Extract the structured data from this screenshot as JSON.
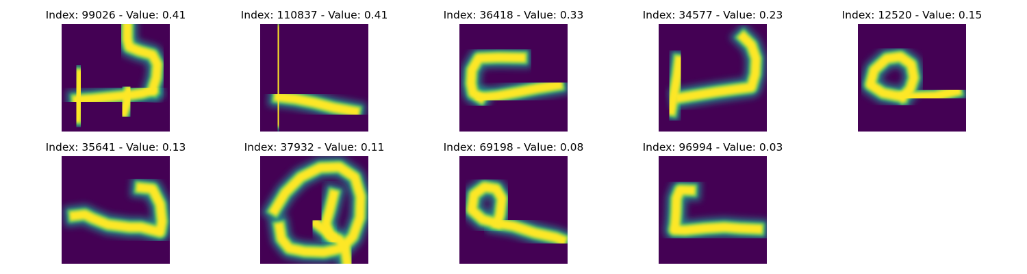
{
  "colors": {
    "background": "#440154",
    "colormap": [
      "#440154",
      "#3b528b",
      "#21908d",
      "#5dc963",
      "#fde725"
    ]
  },
  "panels": [
    {
      "title": "Index: 99026 - Value: 0.41",
      "strokes": [
        [
          [
            4.0,
            24.5
          ],
          [
            4.5,
            18.5
          ],
          [
            4.8,
            13.0
          ]
        ],
        [
          [
            4.0,
            19.8
          ],
          [
            8.0,
            19.5
          ],
          [
            13.0,
            19.0
          ],
          [
            18.0,
            18.5
          ],
          [
            21.0,
            18.0
          ],
          [
            23.5,
            17.2
          ]
        ],
        [
          [
            23.5,
            17.2
          ],
          [
            24.5,
            14.0
          ],
          [
            24.8,
            10.5
          ],
          [
            23.5,
            8.0
          ],
          [
            20.0,
            7.0
          ],
          [
            17.5,
            6.0
          ],
          [
            17.0,
            4.0
          ],
          [
            17.0,
            0.7
          ]
        ],
        [
          [
            16.0,
            23.0
          ],
          [
            17.0,
            20.0
          ],
          [
            17.5,
            17.5
          ]
        ]
      ]
    },
    {
      "title": "Index: 110837 - Value: 0.41",
      "strokes": [
        [
          [
            4.7,
            1.5
          ],
          [
            4.8,
            7.0
          ],
          [
            4.8,
            14.0
          ],
          [
            4.7,
            20.0
          ],
          [
            4.6,
            25.5
          ]
        ],
        [
          [
            4.8,
            19.0
          ],
          [
            9.0,
            19.5
          ],
          [
            14.0,
            20.5
          ],
          [
            19.0,
            21.8
          ],
          [
            24.5,
            22.8
          ]
        ]
      ]
    },
    {
      "title": "Index: 36418 - Value: 0.33",
      "strokes": [
        [
          [
            16.0,
            8.8
          ],
          [
            10.0,
            8.7
          ],
          [
            5.0,
            8.9
          ],
          [
            3.2,
            12.0
          ],
          [
            3.0,
            15.5
          ],
          [
            3.5,
            18.0
          ],
          [
            5.5,
            19.2
          ]
        ],
        [
          [
            5.5,
            19.2
          ],
          [
            10.0,
            18.7
          ],
          [
            15.0,
            17.8
          ],
          [
            20.0,
            16.8
          ],
          [
            25.5,
            15.9
          ]
        ]
      ]
    },
    {
      "title": "Index: 34577 - Value: 0.23",
      "strokes": [
        [
          [
            5.3,
            9.5
          ],
          [
            4.8,
            13.5
          ],
          [
            4.0,
            18.0
          ],
          [
            3.2,
            22.5
          ]
        ],
        [
          [
            5.5,
            19.2
          ],
          [
            10.0,
            18.5
          ],
          [
            15.0,
            17.7
          ],
          [
            20.0,
            17.0
          ],
          [
            24.0,
            16.5
          ],
          [
            25.0,
            13.0
          ],
          [
            25.2,
            9.0
          ],
          [
            24.0,
            5.5
          ],
          [
            22.0,
            3.5
          ]
        ]
      ]
    },
    {
      "title": "Index: 12520 - Value: 0.15",
      "strokes": [
        [
          [
            11.5,
            19.0
          ],
          [
            6.5,
            18.0
          ],
          [
            3.2,
            15.8
          ],
          [
            4.2,
            12.0
          ],
          [
            7.5,
            9.0
          ],
          [
            11.0,
            8.5
          ],
          [
            13.8,
            10.5
          ],
          [
            14.5,
            14.0
          ],
          [
            13.5,
            17.0
          ],
          [
            11.5,
            19.0
          ]
        ],
        [
          [
            11.5,
            19.0
          ],
          [
            15.0,
            19.0
          ],
          [
            20.0,
            18.8
          ],
          [
            25.5,
            17.5
          ]
        ]
      ]
    },
    {
      "title": "Index: 35641 - Value: 0.13",
      "strokes": [
        [
          [
            3.3,
            15.5
          ],
          [
            6.0,
            15.2
          ],
          [
            8.0,
            16.2
          ],
          [
            12.0,
            17.8
          ],
          [
            17.5,
            18.5
          ],
          [
            20.5,
            18.5
          ],
          [
            25.5,
            19.8
          ],
          [
            26.0,
            17.0
          ],
          [
            25.5,
            12.5
          ],
          [
            23.5,
            8.5
          ],
          [
            20.5,
            8.2
          ]
        ]
      ]
    },
    {
      "title": "Index: 37932 - Value: 0.11",
      "strokes": [
        [
          [
            3.8,
            14.0
          ],
          [
            6.5,
            9.5
          ],
          [
            10.5,
            5.5
          ],
          [
            15.5,
            3.0
          ],
          [
            20.5,
            2.8
          ],
          [
            24.5,
            5.5
          ],
          [
            26.0,
            10.5
          ],
          [
            25.8,
            16.0
          ],
          [
            24.0,
            21.0
          ],
          [
            21.0,
            24.0
          ],
          [
            16.5,
            25.0
          ],
          [
            11.5,
            24.8
          ],
          [
            7.5,
            24.0
          ],
          [
            5.5,
            21.5
          ],
          [
            5.0,
            18.5
          ]
        ],
        [
          [
            19.0,
            10.0
          ],
          [
            18.0,
            14.0
          ],
          [
            17.0,
            17.5
          ],
          [
            18.0,
            20.5
          ],
          [
            20.5,
            21.8
          ],
          [
            22.0,
            24.0
          ],
          [
            22.5,
            27.5
          ]
        ],
        [
          [
            14.5,
            17.5
          ],
          [
            17.0,
            19.5
          ],
          [
            19.0,
            21.5
          ]
        ]
      ]
    },
    {
      "title": "Index: 69198 - Value: 0.08",
      "strokes": [
        [
          [
            9.8,
            17.5
          ],
          [
            6.0,
            16.5
          ],
          [
            3.2,
            14.0
          ],
          [
            3.8,
            10.0
          ],
          [
            6.5,
            8.0
          ],
          [
            9.5,
            8.5
          ],
          [
            11.0,
            11.0
          ],
          [
            10.5,
            15.0
          ],
          [
            9.8,
            17.5
          ]
        ],
        [
          [
            9.8,
            17.5
          ],
          [
            14.0,
            18.2
          ],
          [
            19.5,
            20.0
          ],
          [
            25.0,
            21.2
          ],
          [
            26.5,
            21.8
          ]
        ]
      ]
    },
    {
      "title": "Index: 96994 - Value: 0.03",
      "strokes": [
        [
          [
            8.3,
            8.9
          ],
          [
            5.5,
            8.8
          ],
          [
            4.6,
            11.0
          ],
          [
            4.5,
            14.5
          ],
          [
            4.3,
            17.5
          ],
          [
            4.0,
            19.2
          ],
          [
            7.0,
            19.3
          ],
          [
            12.0,
            18.8
          ],
          [
            17.0,
            18.5
          ],
          [
            21.0,
            18.8
          ],
          [
            25.7,
            19.0
          ]
        ]
      ]
    }
  ]
}
